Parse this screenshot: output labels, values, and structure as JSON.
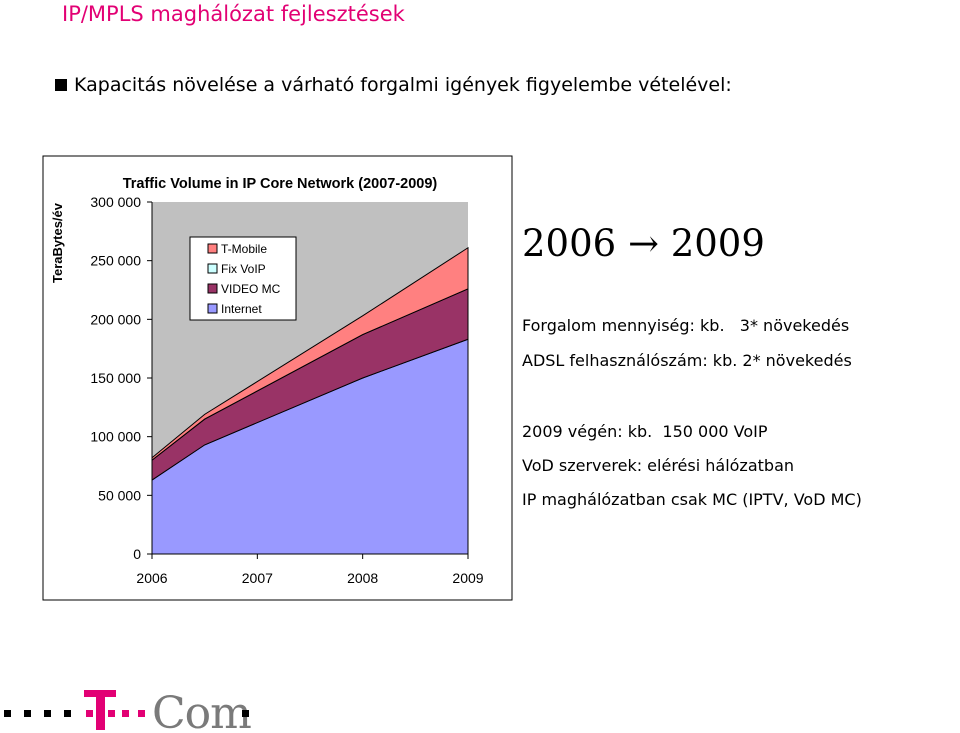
{
  "slide": {
    "title": "IP/MPLS maghálózat fejlesztések",
    "bullet": "Kapacitás növelése a várható forgalmi igények figyelembe vételével:",
    "accent_color": "#e20074"
  },
  "chart_data": {
    "type": "area",
    "stacked": true,
    "title": "Traffic Volume in IP Core Network (2007-2009)",
    "ylabel": "TeraBytes/év",
    "xlabel": "",
    "categories": [
      "2006",
      "2007",
      "2008",
      "2009"
    ],
    "ylim": [
      0,
      300000
    ],
    "yticks": [
      "0",
      "50 000",
      "100 000",
      "150 000",
      "200 000",
      "250 000",
      "300 000"
    ],
    "ytick_values": [
      0,
      50000,
      100000,
      150000,
      200000,
      250000,
      300000
    ],
    "grid": false,
    "plot_background": "#c0c0c0",
    "legend_position": "top-left inside plot",
    "series": [
      {
        "name": "Internet",
        "color": "#9999ff",
        "x": [
          0,
          0.5,
          2,
          3
        ],
        "values": [
          63000,
          93000,
          150000,
          183000
        ]
      },
      {
        "name": "VIDEO MC",
        "color": "#993366",
        "x": [
          0,
          0.5,
          2,
          3
        ],
        "values": [
          17000,
          22000,
          37000,
          43000
        ]
      },
      {
        "name": "Fix VoIP",
        "color": "#ccffff",
        "x": [
          0,
          0.5,
          2,
          3
        ],
        "values": [
          0,
          0,
          0,
          0
        ]
      },
      {
        "name": "T-Mobile",
        "color": "#ff8080",
        "x": [
          0,
          0.5,
          2,
          3
        ],
        "values": [
          2000,
          4000,
          16000,
          35000
        ]
      }
    ],
    "legend_order": [
      "T-Mobile",
      "Fix VoIP",
      "VIDEO MC",
      "Internet"
    ]
  },
  "right_panel": {
    "heading_from": "2006",
    "heading_arrow": "→",
    "heading_to": "2009",
    "line1": "Forgalom mennyiség: kb.   3* növekedés",
    "line2": "ADSL felhasználószám: kb. 2* növekedés",
    "line3": "2009 végén: kb.  150 000 VoIP",
    "line4": "VoD szerverek: elérési hálózatban",
    "line5": "IP maghálózatban csak MC (IPTV, VoD MC)"
  },
  "logo": {
    "text": "T··Com",
    "brand_color": "#e20074"
  }
}
